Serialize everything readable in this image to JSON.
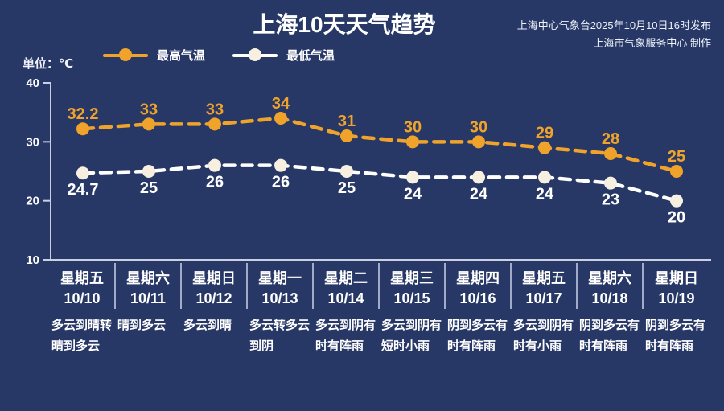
{
  "header": {
    "title": "上海10天天气趋势",
    "issued_by": "上海中心气象台2025年10月10日16时发布",
    "produced_by": "上海市气象服务中心 制作"
  },
  "unit_label": "单位：℃",
  "colors": {
    "background": "#273867",
    "axis": "#c9d0e2",
    "divider": "#a2acc8",
    "text": "#ffffff",
    "high_accent": "#f0a32b",
    "low_line": "#ffffff",
    "low_marker_fill": "#f7efdf"
  },
  "chart_data": {
    "type": "line",
    "title": "上海10天天气趋势",
    "ylabel": "单位：℃",
    "ylim": [
      10,
      40
    ],
    "yticks": [
      40,
      30,
      20,
      10
    ],
    "grid": false,
    "legend_position": "top-left",
    "line_style": "dashed",
    "categories": [
      {
        "weekday": "星期五",
        "date": "10/10",
        "weather": [
          "多云到晴转",
          "晴到多云"
        ]
      },
      {
        "weekday": "星期六",
        "date": "10/11",
        "weather": [
          "晴到多云"
        ]
      },
      {
        "weekday": "星期日",
        "date": "10/12",
        "weather": [
          "多云到晴"
        ]
      },
      {
        "weekday": "星期一",
        "date": "10/13",
        "weather": [
          "多云转多云",
          "到阴"
        ]
      },
      {
        "weekday": "星期二",
        "date": "10/14",
        "weather": [
          "多云到阴有",
          "时有阵雨"
        ]
      },
      {
        "weekday": "星期三",
        "date": "10/15",
        "weather": [
          "多云到阴有",
          "短时小雨"
        ]
      },
      {
        "weekday": "星期四",
        "date": "10/16",
        "weather": [
          "阴到多云有",
          "时有阵雨"
        ]
      },
      {
        "weekday": "星期五",
        "date": "10/17",
        "weather": [
          "多云到阴有",
          "时有小雨"
        ]
      },
      {
        "weekday": "星期六",
        "date": "10/18",
        "weather": [
          "阴到多云有",
          "时有阵雨"
        ]
      },
      {
        "weekday": "星期日",
        "date": "10/19",
        "weather": [
          "阴到多云有",
          "时有阵雨"
        ]
      }
    ],
    "series": [
      {
        "name": "最高气温",
        "line_color": "#f0a32b",
        "marker_color": "#f0a32b",
        "label_color": "#f0a32b",
        "label_position": "above",
        "values": [
          32.2,
          33,
          33,
          34,
          31,
          30,
          30,
          29,
          28,
          25
        ]
      },
      {
        "name": "最低气温",
        "line_color": "#ffffff",
        "marker_color": "#f7efdf",
        "label_color": "#ffffff",
        "label_position": "below",
        "values": [
          24.7,
          25,
          26,
          26,
          25,
          24,
          24,
          24,
          23,
          20
        ]
      }
    ]
  }
}
